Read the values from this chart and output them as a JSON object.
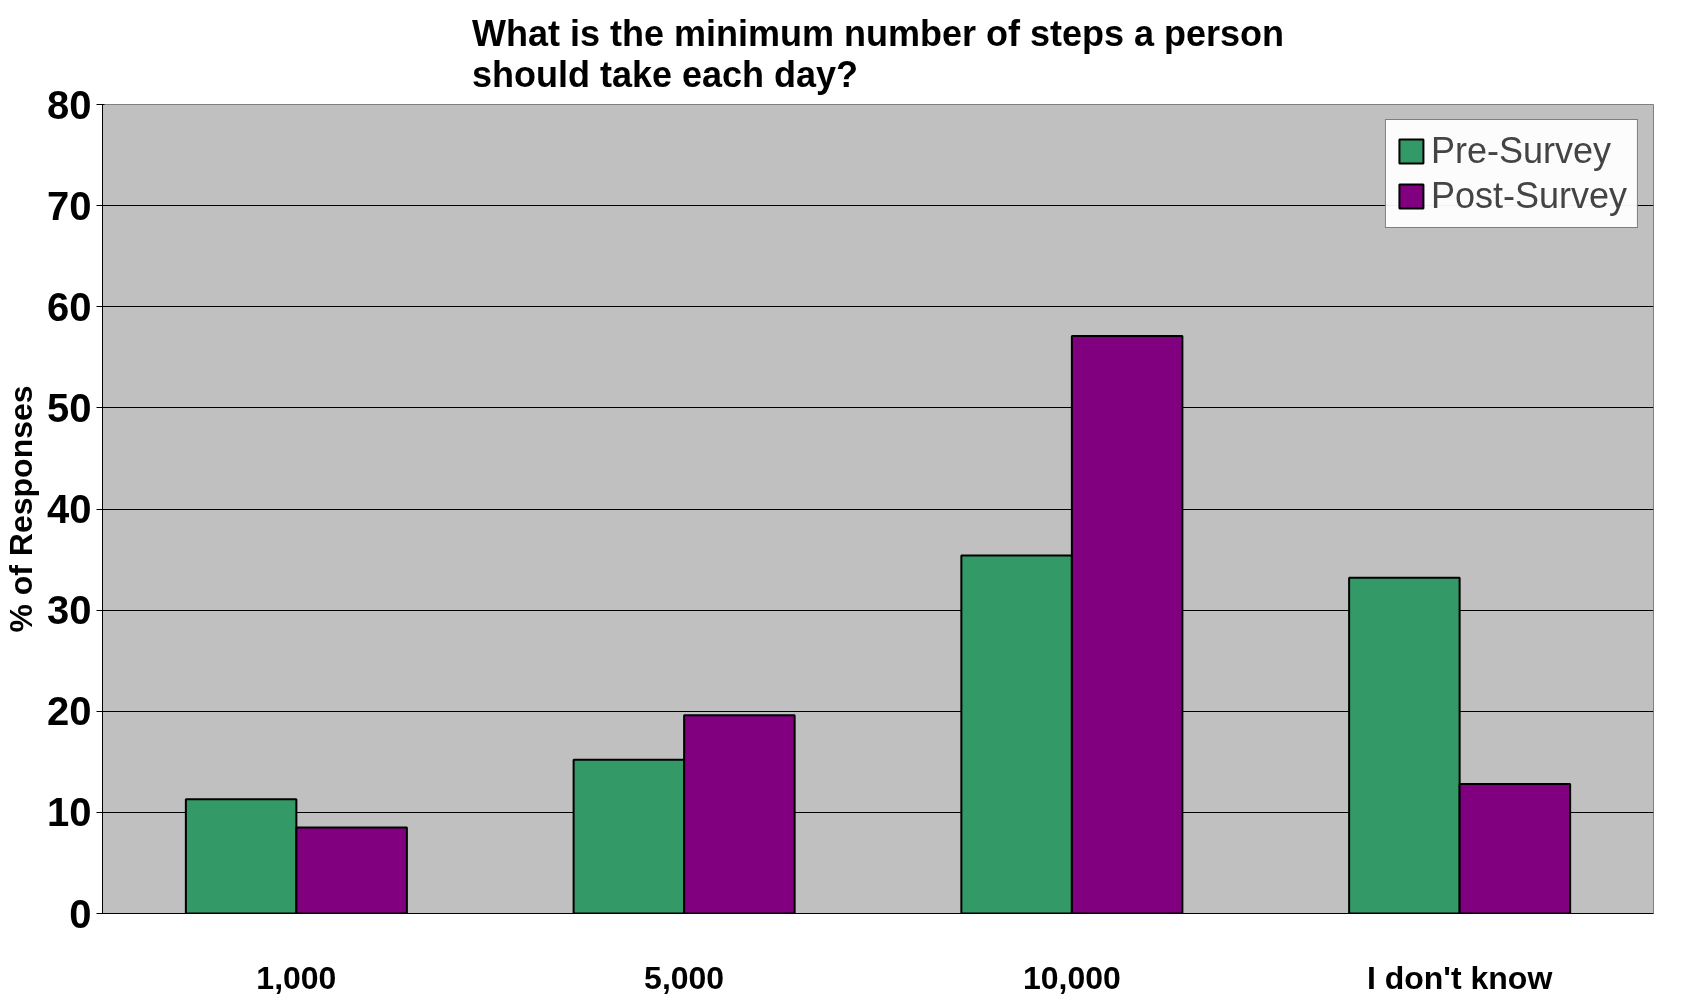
{
  "chart_data": {
    "type": "bar",
    "title": "What is the minimum number of steps a person\nshould take each day?",
    "ylabel": "% of Responses",
    "categories": [
      "1,000",
      "5,000",
      "10,000",
      "I don't know"
    ],
    "series": [
      {
        "name": "Pre-Survey",
        "color": "#339966",
        "values": [
          11.3,
          15.2,
          35.4,
          33.2
        ]
      },
      {
        "name": "Post-Survey",
        "color": "#800080",
        "values": [
          8.5,
          19.6,
          57.1,
          12.8
        ]
      }
    ],
    "ylim": [
      0,
      80
    ],
    "yticks": [
      0,
      10,
      20,
      30,
      40,
      50,
      60,
      70,
      80
    ],
    "grid": "y",
    "legend": "top right"
  }
}
